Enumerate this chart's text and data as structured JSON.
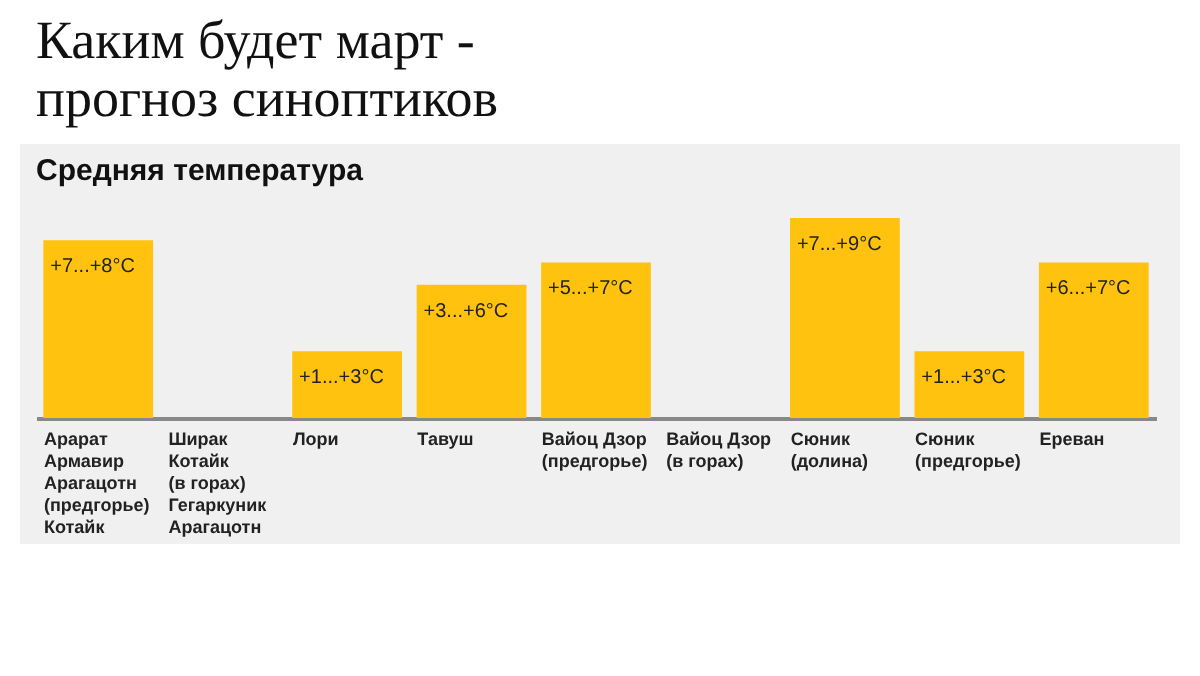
{
  "chart_data": {
    "type": "bar",
    "title": "Каким будет март -\nпрогноз синоптиков",
    "subtitle": "Средняя температура",
    "categories": [
      "Арарат\nАрмавир\nАрагацотн\n(предгорье)\nКотайк",
      "Ширак\nКотайк\n(в горах)\nГегаркуник\nАрагацотн",
      "Лори",
      "Тавуш",
      "Вайоц Дзор\n(предгорье)",
      "Вайоц Дзор\n(в горах)",
      "Сюник\n(долина)",
      "Сюник\n(предгорье)",
      "Ереван"
    ],
    "values": [
      8,
      null,
      3,
      6,
      7,
      null,
      9,
      3,
      7
    ],
    "value_labels": [
      "+7...+8°C",
      null,
      "+1...+3°C",
      "+3...+6°C",
      "+5...+7°C",
      null,
      "+7...+9°C",
      "+1...+3°C",
      "+6...+7°C"
    ],
    "color": "#ffc20e"
  }
}
